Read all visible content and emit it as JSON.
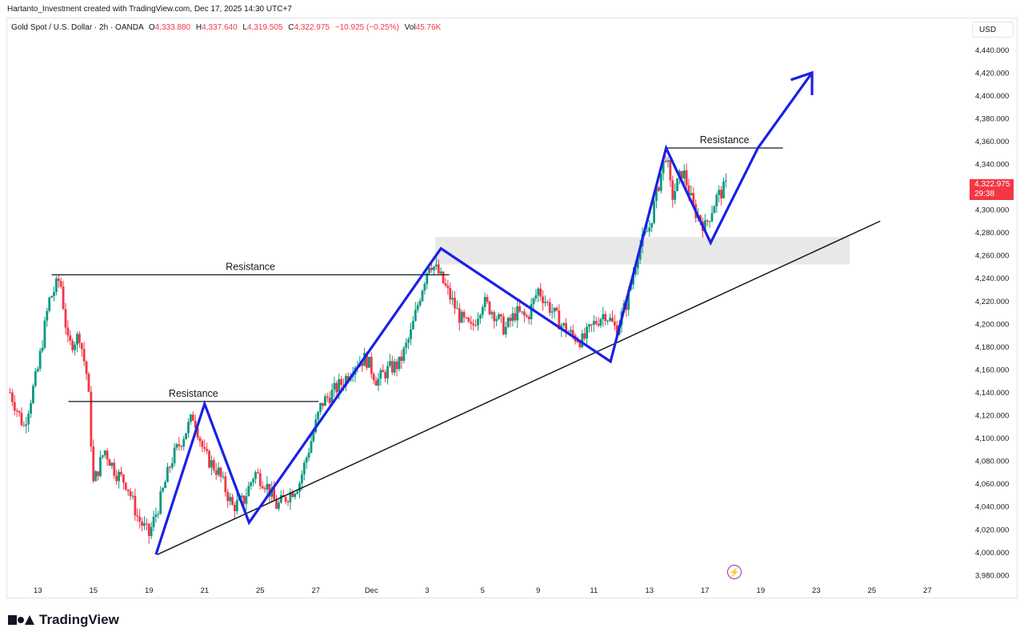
{
  "header": {
    "title": "Hartanto_Investment created with TradingView.com, Dec 17, 2025 14:30 UTC+7",
    "symbol": "Gold Spot / U.S. Dollar · 2h · OANDA",
    "o_label": "O",
    "o_value": "4,333.880",
    "h_label": "H",
    "h_value": "4,337.640",
    "l_label": "L",
    "l_value": "4,319.505",
    "c_label": "C",
    "c_value": "4,322.975",
    "change": "−10.925 (−0.25%)",
    "vol_label": "Vol",
    "vol_value": "45.76K"
  },
  "currency": "USD",
  "last_price": {
    "value": "4,322.975",
    "countdown": "29:38"
  },
  "brand": "TradingView",
  "colors": {
    "up": "#089981",
    "down": "#f23645",
    "pattern": "#1b20e6",
    "trendline": "#131722",
    "zone": "#e8e8e8"
  },
  "chart_data": {
    "type": "candlestick",
    "y_ticks": [
      "4,440.000",
      "4,420.000",
      "4,400.000",
      "4,380.000",
      "4,360.000",
      "4,340.000",
      "4,320.000",
      "4,300.000",
      "4,280.000",
      "4,260.000",
      "4,240.000",
      "4,220.000",
      "4,200.000",
      "4,180.000",
      "4,160.000",
      "4,140.000",
      "4,120.000",
      "4,100.000",
      "4,080.000",
      "4,060.000",
      "4,040.000",
      "4,020.000",
      "4,000.000",
      "3,980.000"
    ],
    "y_tick_values": [
      4440,
      4420,
      4400,
      4380,
      4360,
      4340,
      4320,
      4300,
      4280,
      4260,
      4240,
      4220,
      4200,
      4180,
      4160,
      4140,
      4120,
      4100,
      4080,
      4060,
      4040,
      4020,
      4000,
      3980
    ],
    "x_ticks": [
      "13",
      "15",
      "19",
      "21",
      "25",
      "27",
      "Dec",
      "3",
      "5",
      "9",
      "11",
      "13",
      "17",
      "19",
      "23",
      "25",
      "27"
    ],
    "x_tick_days": [
      13,
      15,
      17,
      19,
      21,
      23,
      25,
      27,
      29,
      31,
      33,
      35,
      37,
      39,
      41,
      43,
      45
    ],
    "ylim": [
      3975,
      4450
    ],
    "xlim_days": [
      11.9,
      46.4
    ],
    "price_path": [
      [
        12.0,
        4140
      ],
      [
        12.5,
        4110
      ],
      [
        13.0,
        4160
      ],
      [
        13.4,
        4220
      ],
      [
        13.8,
        4240
      ],
      [
        14.1,
        4180
      ],
      [
        14.5,
        4190
      ],
      [
        14.8,
        4150
      ],
      [
        15.0,
        4060
      ],
      [
        15.4,
        4090
      ],
      [
        15.8,
        4070
      ],
      [
        16.2,
        4060
      ],
      [
        16.6,
        4030
      ],
      [
        17.0,
        4015
      ],
      [
        17.4,
        4045
      ],
      [
        17.8,
        4080
      ],
      [
        18.2,
        4100
      ],
      [
        18.6,
        4120
      ],
      [
        19.0,
        4085
      ],
      [
        19.5,
        4070
      ],
      [
        20.0,
        4040
      ],
      [
        20.4,
        4045
      ],
      [
        20.8,
        4070
      ],
      [
        21.2,
        4060
      ],
      [
        21.6,
        4040
      ],
      [
        22.0,
        4050
      ],
      [
        22.4,
        4060
      ],
      [
        22.8,
        4095
      ],
      [
        23.2,
        4130
      ],
      [
        23.6,
        4140
      ],
      [
        24.0,
        4150
      ],
      [
        24.4,
        4165
      ],
      [
        24.8,
        4170
      ],
      [
        25.2,
        4150
      ],
      [
        25.6,
        4160
      ],
      [
        26.0,
        4165
      ],
      [
        26.4,
        4190
      ],
      [
        26.8,
        4230
      ],
      [
        27.1,
        4255
      ],
      [
        27.4,
        4245
      ],
      [
        27.8,
        4225
      ],
      [
        28.2,
        4205
      ],
      [
        28.6,
        4195
      ],
      [
        29.0,
        4220
      ],
      [
        29.4,
        4210
      ],
      [
        29.8,
        4195
      ],
      [
        30.2,
        4210
      ],
      [
        30.6,
        4205
      ],
      [
        31.0,
        4230
      ],
      [
        31.4,
        4215
      ],
      [
        31.8,
        4200
      ],
      [
        32.2,
        4190
      ],
      [
        32.6,
        4185
      ],
      [
        33.0,
        4200
      ],
      [
        33.4,
        4210
      ],
      [
        33.8,
        4195
      ],
      [
        34.2,
        4220
      ],
      [
        34.6,
        4265
      ],
      [
        35.0,
        4285
      ],
      [
        35.4,
        4330
      ],
      [
        35.6,
        4350
      ],
      [
        35.8,
        4310
      ],
      [
        36.2,
        4335
      ],
      [
        36.6,
        4300
      ],
      [
        37.0,
        4285
      ],
      [
        37.4,
        4310
      ],
      [
        37.8,
        4322
      ]
    ],
    "annotations": {
      "resistance_label": "Resistance",
      "resistance_lines": [
        {
          "from": [
            14.1,
            4132
          ],
          "to": [
            23.1,
            4132
          ]
        },
        {
          "from": [
            13.5,
            4243
          ],
          "to": [
            27.8,
            4243
          ]
        },
        {
          "from": [
            35.6,
            4354
          ],
          "to": [
            39.8,
            4354
          ]
        }
      ],
      "zigzag": [
        [
          17.25,
          3998
        ],
        [
          19.0,
          4130
        ],
        [
          20.6,
          4026
        ],
        [
          27.5,
          4266
        ],
        [
          33.6,
          4167
        ],
        [
          35.6,
          4354
        ],
        [
          37.2,
          4271
        ],
        [
          38.9,
          4354
        ],
        [
          40.85,
          4420
        ]
      ],
      "trendline": {
        "from": [
          17.3,
          3998
        ],
        "to": [
          43.3,
          4290
        ]
      },
      "zone": {
        "x0": [
          27.3
        ],
        "x1": [
          42.2
        ],
        "y_top": 4276,
        "y_bottom": 4252
      }
    }
  }
}
